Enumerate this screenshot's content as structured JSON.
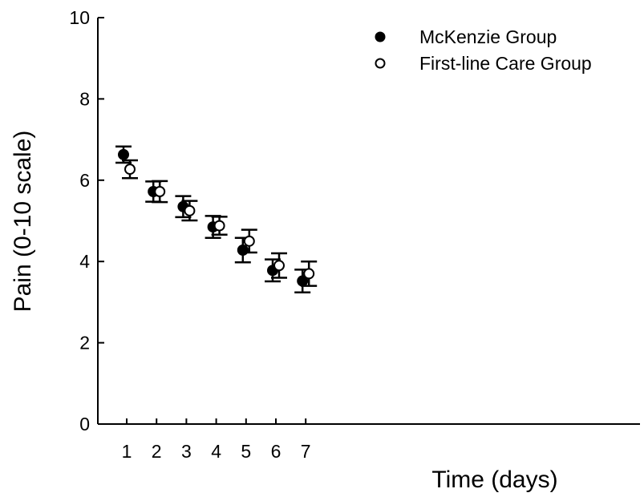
{
  "chart_data": {
    "type": "scatter",
    "xlabel": "Time (days)",
    "ylabel": "Pain (0-10 scale)",
    "categories": [
      "1",
      "2",
      "3",
      "4",
      "5",
      "6",
      "7"
    ],
    "ylim": [
      0,
      10
    ],
    "yticks": [
      "0",
      "2",
      "4",
      "6",
      "8",
      "10"
    ],
    "grid": false,
    "legend_position": "top-right",
    "series": [
      {
        "name": "McKenzie Group",
        "marker": "filled-circle",
        "color": "#000000",
        "values": [
          6.63,
          5.72,
          5.35,
          4.85,
          4.28,
          3.78,
          3.52
        ],
        "error": [
          0.2,
          0.25,
          0.26,
          0.27,
          0.3,
          0.27,
          0.28
        ]
      },
      {
        "name": "First-line Care Group",
        "marker": "open-circle",
        "color": "#000000",
        "values": [
          6.27,
          5.72,
          5.25,
          4.88,
          4.5,
          3.9,
          3.7
        ],
        "error": [
          0.22,
          0.26,
          0.24,
          0.22,
          0.28,
          0.3,
          0.3
        ]
      }
    ]
  }
}
